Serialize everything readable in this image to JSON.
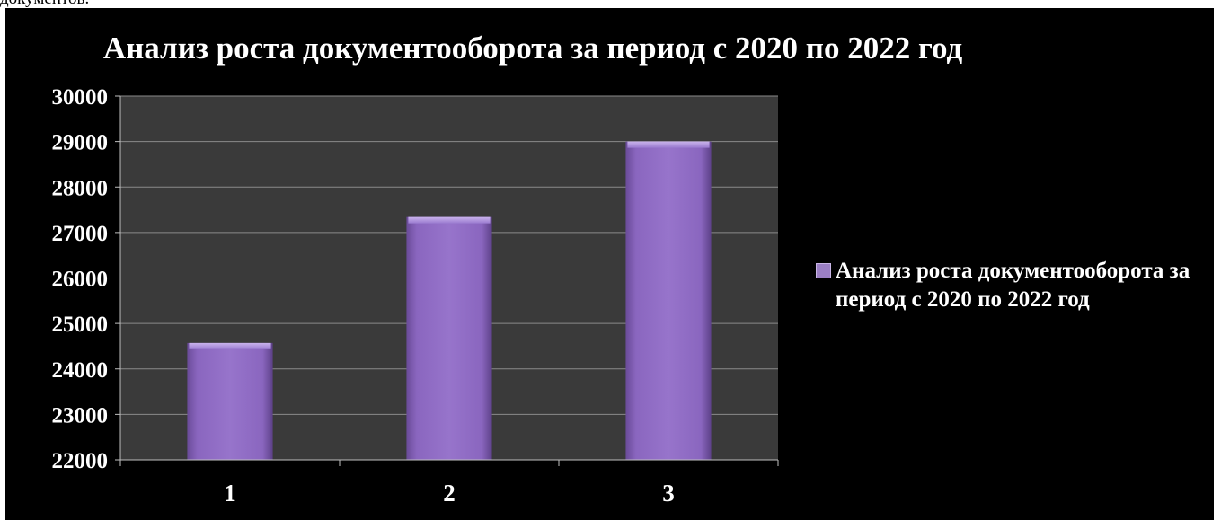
{
  "page": {
    "top_caption": "документов."
  },
  "chart_data": {
    "type": "bar",
    "title": "Анализ роста документооборота за период с 2020 по 2022 год",
    "categories": [
      "1",
      "2",
      "3"
    ],
    "series": [
      {
        "name": "Анализ роста документооборота за период с 2020 по 2022 год",
        "values": [
          24570,
          27340,
          29000
        ]
      }
    ],
    "ylim": [
      22000,
      30000
    ],
    "yticks": [
      "22000",
      "23000",
      "24000",
      "25000",
      "26000",
      "27000",
      "28000",
      "29000",
      "30000"
    ],
    "grid": true,
    "legend_position": "right",
    "colors": {
      "background": "#000000",
      "plot_area": "#3a3a3a",
      "bar": "#8a66bf",
      "text": "#ffffff",
      "gridline": "#8a8a8a"
    }
  }
}
